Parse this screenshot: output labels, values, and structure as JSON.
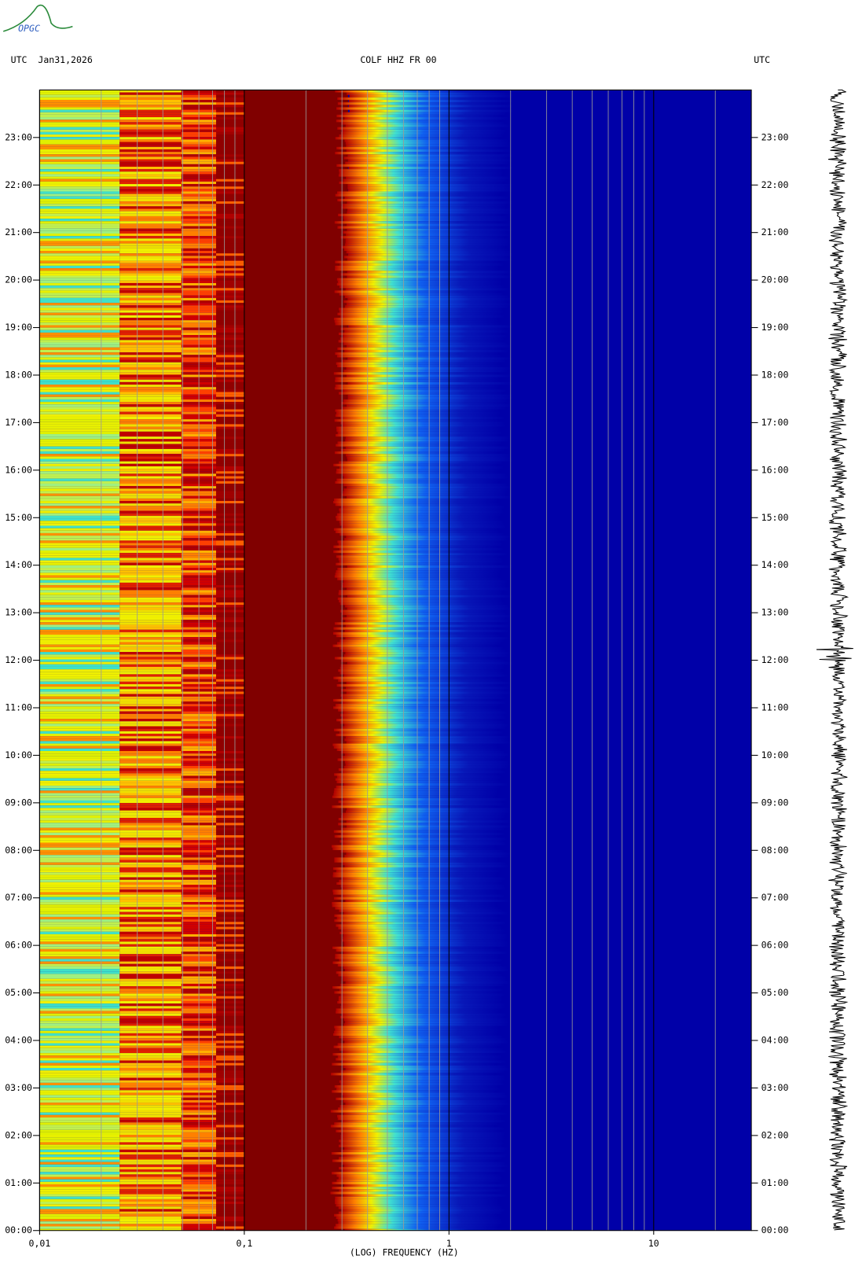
{
  "chart_data": {
    "type": "spectrogram",
    "logo": "OPGC",
    "title_left": "UTC  Jan31,2026",
    "title": "COLF HHZ FR 00",
    "title_right": "UTC",
    "xlabel": "(LOG) FREQUENCY (HZ)",
    "xscale": "log",
    "xlim": [
      0.01,
      30
    ],
    "xticks": [
      {
        "value": 0.01,
        "label": "0,01"
      },
      {
        "value": 0.1,
        "label": "0,1"
      },
      1,
      10
    ],
    "xminorticks": [
      0.02,
      0.03,
      0.04,
      0.05,
      0.06,
      0.07,
      0.08,
      0.09,
      0.2,
      0.3,
      0.4,
      0.5,
      0.6,
      0.7,
      0.8,
      0.9,
      2,
      3,
      4,
      5,
      6,
      7,
      8,
      9,
      20
    ],
    "ylim": [
      0,
      24
    ],
    "yticks": [
      {
        "value": 0,
        "label": "00:00"
      },
      {
        "value": 1,
        "label": "01:00"
      },
      {
        "value": 2,
        "label": "02:00"
      },
      {
        "value": 3,
        "label": "03:00"
      },
      {
        "value": 4,
        "label": "04:00"
      },
      {
        "value": 5,
        "label": "05:00"
      },
      {
        "value": 6,
        "label": "06:00"
      },
      {
        "value": 7,
        "label": "07:00"
      },
      {
        "value": 8,
        "label": "08:00"
      },
      {
        "value": 9,
        "label": "09:00"
      },
      {
        "value": 10,
        "label": "10:00"
      },
      {
        "value": 11,
        "label": "11:00"
      },
      {
        "value": 12,
        "label": "12:00"
      },
      {
        "value": 13,
        "label": "13:00"
      },
      {
        "value": 14,
        "label": "14:00"
      },
      {
        "value": 15,
        "label": "15:00"
      },
      {
        "value": 16,
        "label": "16:00"
      },
      {
        "value": 17,
        "label": "17:00"
      },
      {
        "value": 18,
        "label": "18:00"
      },
      {
        "value": 19,
        "label": "19:00"
      },
      {
        "value": 20,
        "label": "20:00"
      },
      {
        "value": 21,
        "label": "21:00"
      },
      {
        "value": 22,
        "label": "22:00"
      },
      {
        "value": 23,
        "label": "23:00"
      }
    ]
  }
}
